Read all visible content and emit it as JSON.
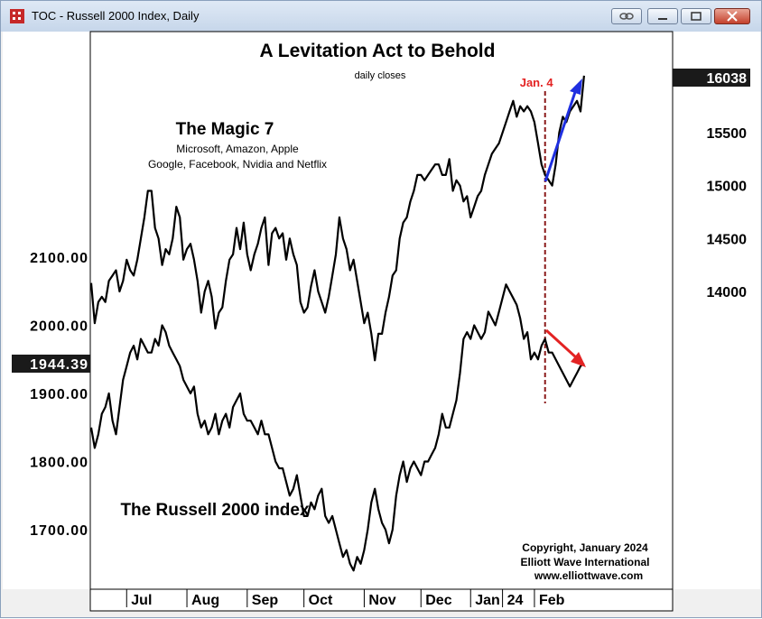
{
  "window": {
    "title": "TOC - Russell 2000 Index, Daily",
    "icons": [
      "chart-app-icon",
      "link-icon",
      "minimize-icon",
      "maximize-icon",
      "close-icon"
    ]
  },
  "chart_data": {
    "type": "line",
    "title": "A Levitation Act to Behold",
    "subtitle": "daily closes",
    "x_ticks": [
      "Jul",
      "Aug",
      "Sep",
      "Oct",
      "Nov",
      "Dec",
      "Jan",
      "24",
      "Feb"
    ],
    "left_axis": {
      "ticks": [
        "2100.00",
        "2000.00",
        "1900.00",
        "1800.00",
        "1700.00"
      ],
      "tick_values": [
        2100,
        2000,
        1900,
        1800,
        1700
      ],
      "current_label": "1944.39",
      "current_value": 1944.39
    },
    "right_axis": {
      "ticks": [
        "15500",
        "15000",
        "14500",
        "14000"
      ],
      "tick_values": [
        15500,
        15000,
        14500,
        14000
      ],
      "current_label": "16038",
      "current_value": 16038
    },
    "x_range": [
      0,
      138
    ],
    "x_ticks_index": [
      10,
      27,
      44,
      60,
      77,
      93,
      107,
      116,
      125
    ],
    "series": [
      {
        "name": "The Magic 7",
        "axis": "right",
        "color": "#000000",
        "values": [
          14080,
          13700,
          13900,
          13950,
          13900,
          14100,
          14150,
          14200,
          14000,
          14100,
          14300,
          14200,
          14150,
          14300,
          14500,
          14700,
          14950,
          14950,
          14600,
          14500,
          14250,
          14400,
          14350,
          14500,
          14800,
          14700,
          14300,
          14400,
          14450,
          14300,
          14100,
          13800,
          14000,
          14100,
          13950,
          13650,
          13800,
          13850,
          14100,
          14300,
          14350,
          14600,
          14400,
          14650,
          14350,
          14200,
          14350,
          14450,
          14600,
          14700,
          14250,
          14550,
          14600,
          14500,
          14550,
          14300,
          14500,
          14350,
          14250,
          13900,
          13800,
          13850,
          14050,
          14200,
          14000,
          13900,
          13800,
          13950,
          14150,
          14350,
          14700,
          14500,
          14400,
          14200,
          14300,
          14100,
          13900,
          13700,
          13800,
          13600,
          13350,
          13600,
          13600,
          13800,
          13950,
          14150,
          14200,
          14500,
          14650,
          14700,
          14850,
          14950,
          15100,
          15100,
          15050,
          15100,
          15150,
          15200,
          15200,
          15100,
          15100,
          15250,
          14950,
          15050,
          15000,
          14850,
          14900,
          14700,
          14800,
          14900,
          14950,
          15100,
          15200,
          15300,
          15350,
          15400,
          15500,
          15600,
          15700,
          15800,
          15650,
          15750,
          15700,
          15750,
          15700,
          15600,
          15400,
          15200,
          15100,
          15050,
          15000,
          15200,
          15500,
          15650,
          15600,
          15700,
          15750,
          15800,
          15700,
          16038
        ]
      },
      {
        "name": "The Russell 2000 index",
        "axis": "left",
        "color": "#000000",
        "values": [
          1850,
          1820,
          1840,
          1870,
          1880,
          1900,
          1860,
          1840,
          1880,
          1920,
          1940,
          1960,
          1970,
          1950,
          1980,
          1970,
          1960,
          1960,
          1980,
          1970,
          2000,
          1990,
          1970,
          1960,
          1950,
          1940,
          1920,
          1910,
          1900,
          1910,
          1870,
          1850,
          1860,
          1840,
          1850,
          1870,
          1840,
          1860,
          1870,
          1850,
          1880,
          1890,
          1900,
          1870,
          1860,
          1860,
          1850,
          1840,
          1860,
          1840,
          1840,
          1820,
          1800,
          1790,
          1790,
          1770,
          1750,
          1760,
          1780,
          1750,
          1720,
          1720,
          1740,
          1730,
          1750,
          1760,
          1720,
          1710,
          1720,
          1700,
          1680,
          1660,
          1670,
          1650,
          1640,
          1660,
          1650,
          1670,
          1700,
          1740,
          1760,
          1730,
          1710,
          1700,
          1680,
          1700,
          1750,
          1780,
          1800,
          1770,
          1790,
          1800,
          1790,
          1780,
          1800,
          1800,
          1810,
          1820,
          1840,
          1870,
          1850,
          1850,
          1870,
          1890,
          1930,
          1980,
          1990,
          1980,
          2000,
          1990,
          1980,
          1990,
          2020,
          2010,
          2000,
          2020,
          2040,
          2060,
          2050,
          2040,
          2030,
          2010,
          1980,
          1990,
          1950,
          1960,
          1950,
          1970,
          1980,
          1960,
          1960,
          1950,
          1940,
          1930,
          1920,
          1910,
          1920,
          1930,
          1940,
          1944.39
        ]
      }
    ],
    "annotations": {
      "event_label": "Jan. 4",
      "event_index": 128,
      "magic7_heading": "The Magic 7",
      "magic7_members_line1": "Microsoft, Amazon, Apple",
      "magic7_members_line2": "Google, Facebook, Nvidia and Netflix",
      "russell_label": "The Russell 2000 index",
      "copyright_line1": "Copyright, January 2024",
      "copyright_line2": "Elliott Wave International",
      "copyright_line3": "www.elliottwave.com",
      "arrow_up_color": "#1f2fe0",
      "arrow_down_color": "#e32323",
      "event_line_color": "#8b1a1a",
      "event_label_color": "#e32323"
    },
    "grid": false
  }
}
